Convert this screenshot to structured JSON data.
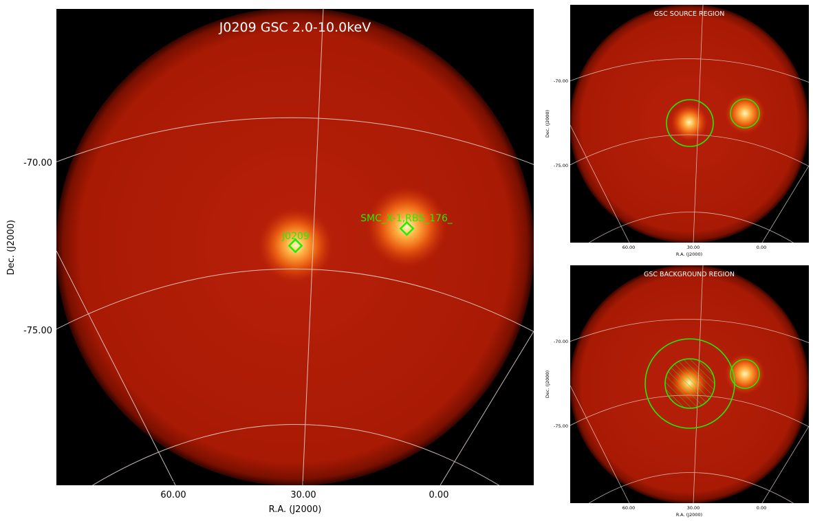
{
  "main": {
    "title": "J0209 GSC 2.0-10.0keV",
    "xlabel": "R.A. (J2000)",
    "ylabel": "Dec. (J2000)",
    "x_ticks": [
      "60.00",
      "30.00",
      "0.00"
    ],
    "y_ticks": [
      "-70.00",
      "-75.00"
    ],
    "sources": [
      {
        "label": "J0209",
        "marker": "diamond"
      },
      {
        "label": "SMC_X-1,RBS_176_",
        "marker": "diamond"
      }
    ]
  },
  "source_panel": {
    "title": "GSC SOURCE REGION",
    "xlabel": "R.A. (J2000)",
    "ylabel": "Dec. (J2000)",
    "x_ticks": [
      "60.00",
      "30.00",
      "0.00"
    ],
    "y_ticks": [
      "-70.00",
      "-75.00"
    ]
  },
  "background_panel": {
    "title": "GSC BACKGROUND REGION",
    "xlabel": "R.A. (J2000)",
    "ylabel": "Dec. (J2000)",
    "x_ticks": [
      "60.00",
      "30.00",
      "0.00"
    ],
    "y_ticks": [
      "-70.00",
      "-75.00"
    ]
  },
  "colors": {
    "sky_background": "#000000",
    "field": "#b01800",
    "source_core": "#fff0a0",
    "region": "#22ee00",
    "grid": "#e8d8d0"
  }
}
